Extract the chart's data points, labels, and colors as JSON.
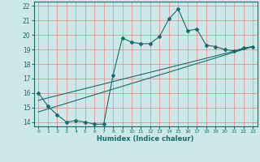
{
  "xlabel": "Humidex (Indice chaleur)",
  "bg_color": "#cce8e8",
  "grid_color": "#f08080",
  "line_color": "#1a6b6b",
  "xlim": [
    -0.5,
    23.5
  ],
  "ylim": [
    13.7,
    22.3
  ],
  "x_ticks": [
    0,
    1,
    2,
    3,
    4,
    5,
    6,
    7,
    8,
    9,
    10,
    11,
    12,
    13,
    14,
    15,
    16,
    17,
    18,
    19,
    20,
    21,
    22,
    23
  ],
  "y_ticks": [
    14,
    15,
    16,
    17,
    18,
    19,
    20,
    21,
    22
  ],
  "curve1_x": [
    0,
    1,
    2,
    3,
    4,
    5,
    6,
    7,
    8,
    9,
    10,
    11,
    12,
    13,
    14,
    15,
    16,
    17,
    18,
    19,
    20,
    21,
    22,
    23
  ],
  "curve1_y": [
    16.0,
    15.1,
    14.5,
    14.0,
    14.1,
    14.0,
    13.85,
    13.85,
    17.2,
    19.8,
    19.5,
    19.4,
    19.4,
    19.9,
    21.1,
    21.8,
    20.3,
    20.4,
    19.3,
    19.2,
    19.0,
    18.9,
    19.1,
    19.2
  ],
  "line2_x": [
    0,
    23
  ],
  "line2_y": [
    15.5,
    19.2
  ],
  "line3_x": [
    0,
    23
  ],
  "line3_y": [
    14.7,
    19.2
  ]
}
